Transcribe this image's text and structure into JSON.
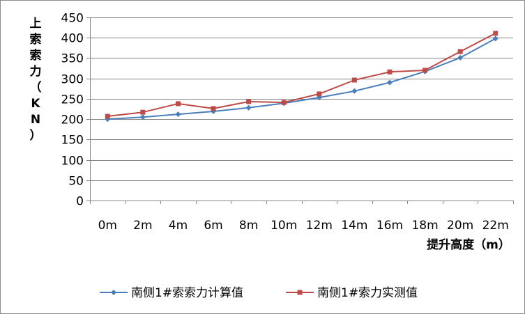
{
  "chart_data": {
    "type": "line",
    "title": "",
    "xlabel": "提升高度（m）",
    "ylabel": "上索索力（KN）",
    "ylabel_chars": [
      "上",
      "索",
      "索",
      "力",
      "（",
      "K",
      "N",
      "）"
    ],
    "categories": [
      "0m",
      "2m",
      "4m",
      "6m",
      "8m",
      "10m",
      "12m",
      "14m",
      "16m",
      "18m",
      "20m",
      "22m"
    ],
    "ylim": [
      0,
      450
    ],
    "yticks": [
      0,
      50,
      100,
      150,
      200,
      250,
      300,
      350,
      400,
      450
    ],
    "ytick_labels": [
      "0",
      "50",
      "100",
      "150",
      "200",
      "250",
      "300",
      "350",
      "400",
      "450"
    ],
    "grid": true,
    "legend_position": "bottom",
    "series": [
      {
        "name": "南侧1#索索力计算值",
        "color": "#4a7ebb",
        "marker": "diamond",
        "values": [
          200,
          205,
          212,
          219,
          228,
          239,
          253,
          269,
          290,
          317,
          351,
          398
        ]
      },
      {
        "name": "南侧1#索力实测值",
        "color": "#be4b48",
        "marker": "square",
        "values": [
          207,
          217,
          238,
          226,
          243,
          241,
          262,
          296,
          316,
          320,
          366,
          411
        ]
      }
    ]
  }
}
